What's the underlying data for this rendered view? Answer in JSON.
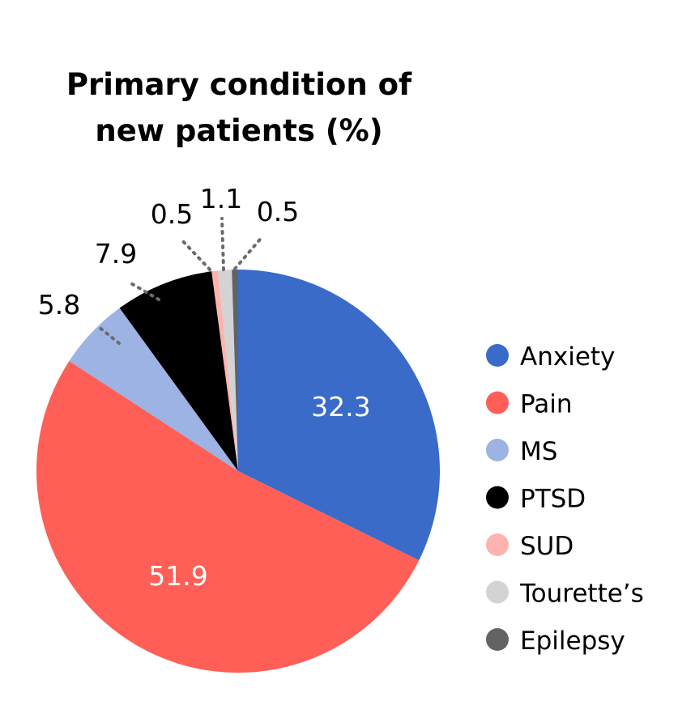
{
  "chart_data": {
    "type": "pie",
    "title": "Primary condition of new patients (%)",
    "title_lines": [
      "Primary condition of",
      "new patients (%)"
    ],
    "start_angle_deg": 0,
    "direction": "clockwise",
    "legend_position": "right",
    "slices": [
      {
        "label": "Anxiety",
        "value": 32.3,
        "value_label": "32.3",
        "color": "#3a6bc8",
        "label_style": "inside"
      },
      {
        "label": "Pain",
        "value": 51.9,
        "value_label": "51.9",
        "color": "#ff5f56",
        "label_style": "inside"
      },
      {
        "label": "MS",
        "value": 5.8,
        "value_label": "5.8",
        "color": "#9db3e3",
        "label_style": "outside"
      },
      {
        "label": "PTSD",
        "value": 7.9,
        "value_label": "7.9",
        "color": "#000000",
        "label_style": "outside"
      },
      {
        "label": "SUD",
        "value": 0.5,
        "value_label": "0.5",
        "color": "#ffb3ae",
        "label_style": "outside"
      },
      {
        "label": "Tourette’s",
        "value": 1.1,
        "value_label": "1.1",
        "color": "#d3d3d3",
        "label_style": "outside"
      },
      {
        "label": "Epilepsy",
        "value": 0.5,
        "value_label": "0.5",
        "color": "#636363",
        "label_style": "outside"
      }
    ]
  }
}
